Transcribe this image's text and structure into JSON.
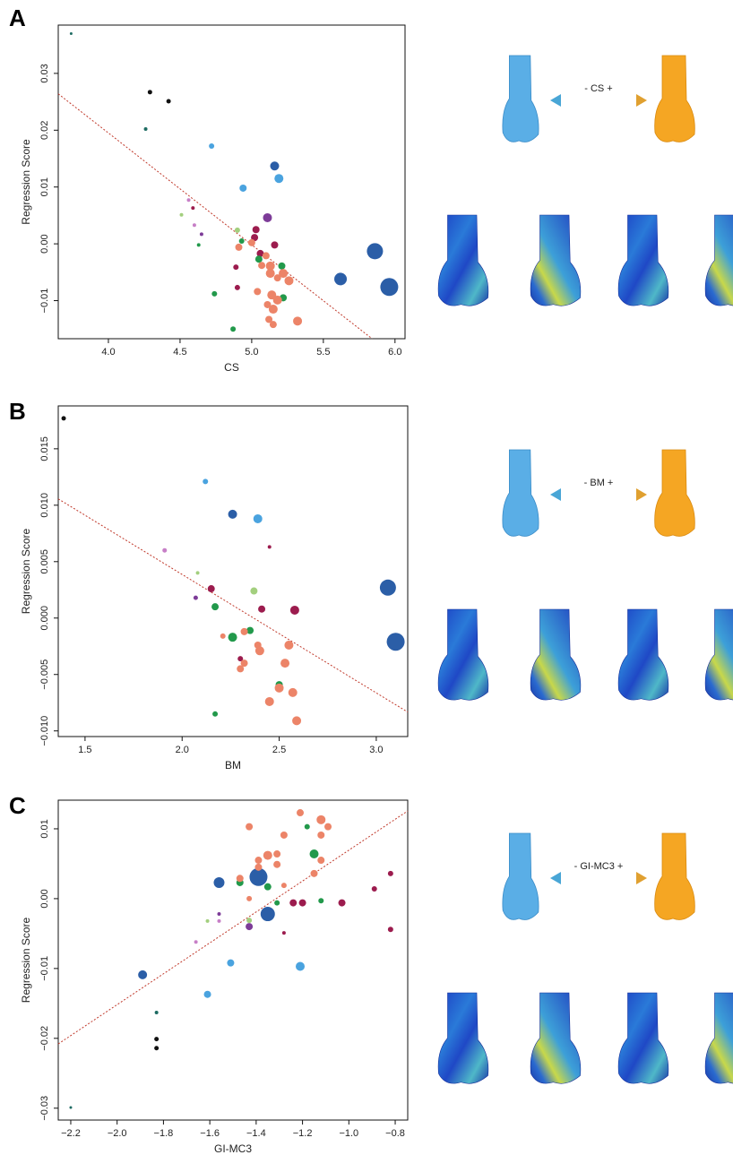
{
  "chart_data": [
    {
      "type": "scatter",
      "panel_label": "A",
      "xlabel": "CS",
      "ylabel": "Regression Score",
      "shape_label": "- CS +",
      "xlim": [
        3.65,
        6.07
      ],
      "ylim": [
        -0.0167,
        0.0385
      ],
      "xticks": [
        {
          "value": 4,
          "label": "4.0"
        },
        4.5,
        {
          "value": 5,
          "label": "5.0"
        },
        5.5,
        {
          "value": 6,
          "label": "6.0"
        }
      ],
      "yticks": [
        0.03,
        0.02,
        0.01,
        {
          "value": 0,
          "label": "0.00"
        },
        {
          "value": -0.01,
          "label": "−0.01"
        }
      ],
      "fit_line": {
        "x": [
          3.65,
          5.84
        ],
        "y": [
          0.0264,
          -0.0167
        ],
        "color": "#c0392b"
      },
      "series": [
        {
          "color": "#111111",
          "x": [
            4.29,
            4.42
          ],
          "values": [
            0.0267,
            0.0251
          ],
          "sizes": [
            2.5,
            2.5
          ]
        },
        {
          "color": "#1d6b62",
          "x": [
            3.74,
            4.26
          ],
          "values": [
            0.037,
            0.0202
          ],
          "sizes": [
            1.5,
            2
          ]
        },
        {
          "color": "#4aa3df",
          "x": [
            4.72,
            4.94,
            5.19
          ],
          "values": [
            0.0172,
            0.0098,
            0.0115
          ],
          "sizes": [
            3,
            4,
            5
          ]
        },
        {
          "color": "#2b5ea7",
          "x": [
            5.16,
            5.86,
            5.96,
            5.62
          ],
          "values": [
            0.0137,
            -0.0013,
            -0.0076,
            -0.0062
          ],
          "sizes": [
            5,
            9,
            10,
            7
          ]
        },
        {
          "color": "#7d3c98",
          "x": [
            5.11,
            4.65
          ],
          "values": [
            0.0046,
            0.0017
          ],
          "sizes": [
            5,
            2
          ]
        },
        {
          "color": "#c77fc7",
          "x": [
            4.56,
            4.6
          ],
          "values": [
            0.0077,
            0.0033
          ],
          "sizes": [
            2,
            2
          ]
        },
        {
          "color": "#a3cf7e",
          "x": [
            4.51,
            4.9
          ],
          "values": [
            0.0051,
            0.0024
          ],
          "sizes": [
            2,
            3
          ]
        },
        {
          "color": "#9c1c4e",
          "x": [
            4.59,
            5.03,
            5.02,
            5.16,
            4.89,
            4.9,
            5.06
          ],
          "values": [
            0.0063,
            0.0025,
            0.0011,
            -0.0002,
            -0.0041,
            -0.0077,
            -0.0017
          ],
          "sizes": [
            2,
            4,
            4,
            4,
            3,
            3,
            4
          ]
        },
        {
          "color": "#22994b",
          "x": [
            4.93,
            5.05,
            5.21,
            5.22,
            4.74,
            4.87,
            4.63
          ],
          "values": [
            0.0005,
            -0.0027,
            -0.0039,
            -0.0095,
            -0.0088,
            -0.015,
            -0.0002
          ],
          "sizes": [
            3,
            4,
            4,
            4,
            3,
            3,
            2
          ]
        },
        {
          "color": "#ec8468",
          "x": [
            4.91,
            5.0,
            5.07,
            5.13,
            5.13,
            5.18,
            5.26,
            5.04,
            5.14,
            5.18,
            5.11,
            5.15,
            5.12,
            5.15,
            5.32,
            5.22,
            5.1
          ],
          "values": [
            -0.0006,
            0.0002,
            -0.0038,
            -0.0039,
            -0.0052,
            -0.006,
            -0.0065,
            -0.0084,
            -0.009,
            -0.0099,
            -0.0107,
            -0.0115,
            -0.0133,
            -0.0142,
            -0.0136,
            -0.0052,
            -0.0021
          ],
          "sizes": [
            4,
            4,
            4,
            5,
            5,
            4,
            5,
            4,
            5,
            5,
            4,
            5,
            4,
            4,
            5,
            5,
            4
          ]
        }
      ]
    },
    {
      "type": "scatter",
      "panel_label": "B",
      "xlabel": "BM",
      "ylabel": "Regression Score",
      "shape_label": "- BM +",
      "xlim": [
        1.362,
        3.162
      ],
      "ylim": [
        -0.0105,
        0.0188
      ],
      "xticks": [
        1.5,
        {
          "value": 2,
          "label": "2.0"
        },
        2.5,
        {
          "value": 3,
          "label": "3.0"
        }
      ],
      "yticks": [
        0.015,
        {
          "value": 0.01,
          "label": "0.010"
        },
        0.005,
        {
          "value": 0,
          "label": "0.000"
        },
        {
          "value": -0.005,
          "label": "−0.005"
        },
        {
          "value": -0.01,
          "label": "−0.010"
        }
      ],
      "fit_line": {
        "x": [
          1.362,
          3.162
        ],
        "y": [
          0.01056,
          -0.00833
        ],
        "color": "#c0392b"
      },
      "series": [
        {
          "color": "#111111",
          "x": [
            1.39
          ],
          "values": [
            0.0177
          ],
          "sizes": [
            2.5
          ]
        },
        {
          "color": "#4aa3df",
          "x": [
            2.12,
            2.39
          ],
          "values": [
            0.0121,
            0.0088
          ],
          "sizes": [
            3,
            5
          ]
        },
        {
          "color": "#2b5ea7",
          "x": [
            2.26,
            3.06,
            3.1
          ],
          "values": [
            0.0092,
            0.0027,
            -0.0021
          ],
          "sizes": [
            5,
            9,
            10
          ]
        },
        {
          "color": "#c77fc7",
          "x": [
            1.91
          ],
          "values": [
            0.006
          ],
          "sizes": [
            2.5
          ]
        },
        {
          "color": "#7d3c98",
          "x": [
            2.07
          ],
          "values": [
            0.0018
          ],
          "sizes": [
            2.5
          ]
        },
        {
          "color": "#a3cf7e",
          "x": [
            2.08,
            2.37
          ],
          "values": [
            0.004,
            0.0024
          ],
          "sizes": [
            2,
            4
          ]
        },
        {
          "color": "#9c1c4e",
          "x": [
            2.15,
            2.45,
            2.58,
            2.41,
            2.3
          ],
          "values": [
            0.0026,
            0.0063,
            0.0007,
            0.0008,
            -0.0036
          ],
          "sizes": [
            4,
            2,
            5,
            4,
            3
          ]
        },
        {
          "color": "#22994b",
          "x": [
            2.17,
            2.26,
            2.35,
            2.5,
            2.17
          ],
          "values": [
            0.001,
            -0.0017,
            -0.0011,
            -0.0059,
            -0.0085
          ],
          "sizes": [
            4,
            5,
            4,
            4,
            3
          ]
        },
        {
          "color": "#ec8468",
          "x": [
            2.21,
            2.32,
            2.3,
            2.32,
            2.39,
            2.4,
            2.55,
            2.53,
            2.5,
            2.57,
            2.45,
            2.59
          ],
          "values": [
            -0.0016,
            -0.0012,
            -0.0045,
            -0.004,
            -0.0024,
            -0.0029,
            -0.0024,
            -0.004,
            -0.0062,
            -0.0066,
            -0.0074,
            -0.0091
          ],
          "sizes": [
            3,
            4,
            4,
            4,
            4,
            5,
            5,
            5,
            5,
            5,
            5,
            5
          ]
        }
      ]
    },
    {
      "type": "scatter",
      "panel_label": "C",
      "xlabel": "GI-MC3",
      "ylabel": "Regression Score",
      "shape_label": "- GI-MC3 +",
      "xlim": [
        -2.254,
        -0.746
      ],
      "ylim": [
        -0.0317,
        0.0141
      ],
      "xticks": [
        {
          "value": -2.2,
          "label": "−2.2"
        },
        {
          "value": -2,
          "label": "−2.0"
        },
        {
          "value": -1.8,
          "label": "−1.8"
        },
        {
          "value": -1.6,
          "label": "−1.6"
        },
        {
          "value": -1.4,
          "label": "−1.4"
        },
        {
          "value": -1.2,
          "label": "−1.2"
        },
        {
          "value": -1,
          "label": "−1.0"
        },
        {
          "value": -0.8,
          "label": "−0.8"
        }
      ],
      "yticks": [
        0.01,
        {
          "value": 0,
          "label": "0.00"
        },
        {
          "value": -0.01,
          "label": "−0.01"
        },
        {
          "value": -0.02,
          "label": "−0.02"
        },
        {
          "value": -0.03,
          "label": "−0.03"
        }
      ],
      "fit_line": {
        "x": [
          -2.254,
          -0.746
        ],
        "y": [
          -0.0208,
          0.01256
        ],
        "color": "#c0392b"
      },
      "series": [
        {
          "color": "#111111",
          "x": [
            -1.83,
            -1.83
          ],
          "values": [
            -0.0201,
            -0.0214
          ],
          "sizes": [
            2.5,
            2.5
          ]
        },
        {
          "color": "#1d6b62",
          "x": [
            -2.2,
            -1.83
          ],
          "values": [
            -0.0299,
            -0.0163
          ],
          "sizes": [
            1.5,
            2
          ]
        },
        {
          "color": "#2b5ea7",
          "x": [
            -1.89,
            -1.56,
            -1.39,
            -1.35
          ],
          "values": [
            -0.0109,
            0.0023,
            0.0031,
            -0.0022
          ],
          "sizes": [
            5,
            6,
            10,
            8
          ]
        },
        {
          "color": "#4aa3df",
          "x": [
            -1.51,
            -1.61,
            -1.21
          ],
          "values": [
            -0.0092,
            -0.0137,
            -0.0097
          ],
          "sizes": [
            4,
            4,
            5
          ]
        },
        {
          "color": "#c77fc7",
          "x": [
            -1.66,
            -1.56
          ],
          "values": [
            -0.0062,
            -0.0032
          ],
          "sizes": [
            2,
            2
          ]
        },
        {
          "color": "#7d3c98",
          "x": [
            -1.56,
            -1.43
          ],
          "values": [
            -0.0022,
            -0.004
          ],
          "sizes": [
            2,
            4
          ]
        },
        {
          "color": "#a3cf7e",
          "x": [
            -1.61,
            -1.43
          ],
          "values": [
            -0.0032,
            -0.0031
          ],
          "sizes": [
            2,
            3
          ]
        },
        {
          "color": "#9c1c4e",
          "x": [
            -1.28,
            -1.24,
            -1.2,
            -1.03,
            -0.89,
            -0.82,
            -0.82
          ],
          "values": [
            -0.0049,
            -0.0006,
            -0.0006,
            -0.0006,
            0.0014,
            0.0036,
            -0.0044
          ],
          "sizes": [
            2,
            4,
            4,
            4,
            3,
            3,
            3
          ]
        },
        {
          "color": "#22994b",
          "x": [
            -1.47,
            -1.35,
            -1.31,
            -1.18,
            -1.15,
            -1.12
          ],
          "values": [
            0.0023,
            0.0017,
            -0.0006,
            0.0103,
            0.0064,
            -0.0003
          ],
          "sizes": [
            4,
            4,
            3,
            3,
            5,
            3
          ]
        },
        {
          "color": "#ec8468",
          "x": [
            -1.43,
            -1.39,
            -1.39,
            -1.35,
            -1.31,
            -1.31,
            -1.28,
            -1.28,
            -1.43,
            -1.47,
            -1.21,
            -1.15,
            -1.12,
            -1.12,
            -1.09,
            -1.12
          ],
          "values": [
            0.0103,
            0.0055,
            0.0045,
            0.0062,
            0.0064,
            0.0049,
            0.0019,
            0.0091,
            0,
            0.0029,
            0.0123,
            0.0036,
            0.0113,
            0.0091,
            0.0103,
            0.0055
          ],
          "sizes": [
            4,
            4,
            4,
            5,
            4,
            4,
            3,
            4,
            3,
            4,
            4,
            4,
            5,
            4,
            4,
            4
          ]
        }
      ]
    }
  ]
}
